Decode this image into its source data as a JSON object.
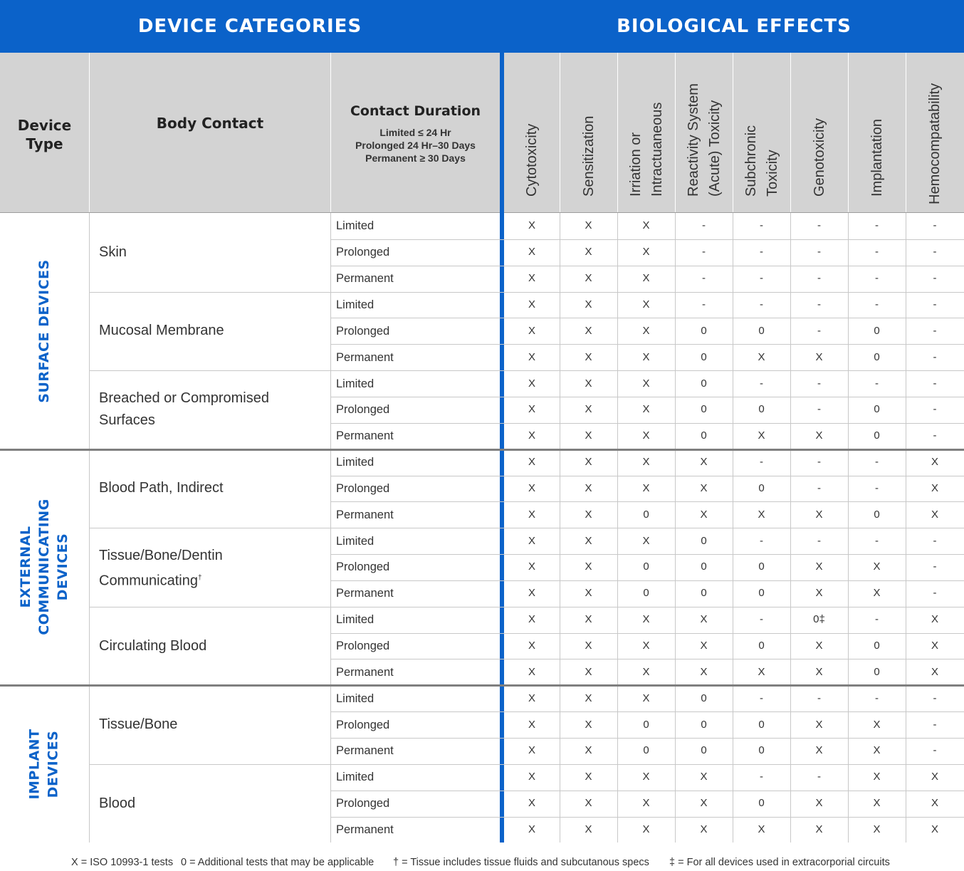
{
  "banners": {
    "left": "DEVICE CATEGORIES",
    "right": "BIOLOGICAL EFFECTS"
  },
  "headers": {
    "device_type": [
      "Device",
      "Type"
    ],
    "body_contact": "Body Contact",
    "contact_duration": {
      "title": "Contact Duration",
      "lines": [
        {
          "bold": "Limited",
          "rest": " ≤ 24 Hr"
        },
        {
          "bold": "Prolonged",
          "rest": " 24 Hr–30 Days"
        },
        {
          "bold": "Permanent",
          "rest": " ≥ 30 Days"
        }
      ]
    },
    "effects": [
      [
        "Cytotoxicity"
      ],
      [
        "Sensitization"
      ],
      [
        "Irriation or",
        "Intractuaneous"
      ],
      [
        "Reactivity System",
        "(Acute) Toxicity"
      ],
      [
        "Subchronic",
        "Toxicity"
      ],
      [
        "Genotoxicity"
      ],
      [
        "Implantation"
      ],
      [
        "Hemocompatability"
      ]
    ]
  },
  "groups": [
    {
      "label": [
        "SURFACE DEVICES"
      ],
      "contacts": [
        {
          "name": [
            "Skin"
          ],
          "rows": [
            {
              "duration": "Limited",
              "values": [
                "X",
                "X",
                "X",
                "-",
                "-",
                "-",
                "-",
                "-"
              ]
            },
            {
              "duration": "Prolonged",
              "values": [
                "X",
                "X",
                "X",
                "-",
                "-",
                "-",
                "-",
                "-"
              ]
            },
            {
              "duration": "Permanent",
              "values": [
                "X",
                "X",
                "X",
                "-",
                "-",
                "-",
                "-",
                "-"
              ]
            }
          ]
        },
        {
          "name": [
            "Mucosal Membrane"
          ],
          "rows": [
            {
              "duration": "Limited",
              "values": [
                "X",
                "X",
                "X",
                "-",
                "-",
                "-",
                "-",
                "-"
              ]
            },
            {
              "duration": "Prolonged",
              "values": [
                "X",
                "X",
                "X",
                "0",
                "0",
                "-",
                "0",
                "-"
              ]
            },
            {
              "duration": "Permanent",
              "values": [
                "X",
                "X",
                "X",
                "0",
                "X",
                "X",
                "0",
                "-"
              ]
            }
          ]
        },
        {
          "name": [
            "Breached or Compromised",
            "Surfaces"
          ],
          "rows": [
            {
              "duration": "Limited",
              "values": [
                "X",
                "X",
                "X",
                "0",
                "-",
                "-",
                "-",
                "-"
              ]
            },
            {
              "duration": "Prolonged",
              "values": [
                "X",
                "X",
                "X",
                "0",
                "0",
                "-",
                "0",
                "-"
              ]
            },
            {
              "duration": "Permanent",
              "values": [
                "X",
                "X",
                "X",
                "0",
                "X",
                "X",
                "0",
                "-"
              ]
            }
          ]
        }
      ]
    },
    {
      "label": [
        "EXTERNAL",
        "COMMUNICATING",
        "DEVICES"
      ],
      "contacts": [
        {
          "name": [
            "Blood Path, Indirect"
          ],
          "rows": [
            {
              "duration": "Limited",
              "values": [
                "X",
                "X",
                "X",
                "X",
                "-",
                "-",
                "-",
                "X"
              ]
            },
            {
              "duration": "Prolonged",
              "values": [
                "X",
                "X",
                "X",
                "X",
                "0",
                "-",
                "-",
                "X"
              ]
            },
            {
              "duration": "Permanent",
              "values": [
                "X",
                "X",
                "0",
                "X",
                "X",
                "X",
                "0",
                "X"
              ]
            }
          ]
        },
        {
          "name": [
            "Tissue/Bone/Dentin",
            "Communicating"
          ],
          "name_sup": "†",
          "rows": [
            {
              "duration": "Limited",
              "values": [
                "X",
                "X",
                "X",
                "0",
                "-",
                "-",
                "-",
                "-"
              ]
            },
            {
              "duration": "Prolonged",
              "values": [
                "X",
                "X",
                "0",
                "0",
                "0",
                "X",
                "X",
                "-"
              ]
            },
            {
              "duration": "Permanent",
              "values": [
                "X",
                "X",
                "0",
                "0",
                "0",
                "X",
                "X",
                "-"
              ]
            }
          ]
        },
        {
          "name": [
            "Circulating Blood"
          ],
          "rows": [
            {
              "duration": "Limited",
              "values": [
                "X",
                "X",
                "X",
                "X",
                "-",
                "0‡",
                "-",
                "X"
              ]
            },
            {
              "duration": "Prolonged",
              "values": [
                "X",
                "X",
                "X",
                "X",
                "0",
                "X",
                "0",
                "X"
              ]
            },
            {
              "duration": "Permanent",
              "values": [
                "X",
                "X",
                "X",
                "X",
                "X",
                "X",
                "0",
                "X"
              ]
            }
          ]
        }
      ]
    },
    {
      "label": [
        "IMPLANT",
        "DEVICES"
      ],
      "contacts": [
        {
          "name": [
            "Tissue/Bone"
          ],
          "rows": [
            {
              "duration": "Limited",
              "values": [
                "X",
                "X",
                "X",
                "0",
                "-",
                "-",
                "-",
                "-"
              ]
            },
            {
              "duration": "Prolonged",
              "values": [
                "X",
                "X",
                "0",
                "0",
                "0",
                "X",
                "X",
                "-"
              ]
            },
            {
              "duration": "Permanent",
              "values": [
                "X",
                "X",
                "0",
                "0",
                "0",
                "X",
                "X",
                "-"
              ]
            }
          ]
        },
        {
          "name": [
            "Blood"
          ],
          "rows": [
            {
              "duration": "Limited",
              "values": [
                "X",
                "X",
                "X",
                "X",
                "-",
                "-",
                "X",
                "X"
              ]
            },
            {
              "duration": "Prolonged",
              "values": [
                "X",
                "X",
                "X",
                "X",
                "0",
                "X",
                "X",
                "X"
              ]
            },
            {
              "duration": "Permanent",
              "values": [
                "X",
                "X",
                "X",
                "X",
                "X",
                "X",
                "X",
                "X"
              ]
            }
          ]
        }
      ]
    }
  ],
  "legend": [
    "X = ISO 10993-1 tests",
    "0 = Additional tests that may be applicable",
    "† = Tissue includes tissue fluids and subcutanous specs",
    "‡ = For all devices used in extracorporial circuits"
  ],
  "colors": {
    "brand_blue": "#0b62c9",
    "header_gray": "#d3d3d3"
  }
}
